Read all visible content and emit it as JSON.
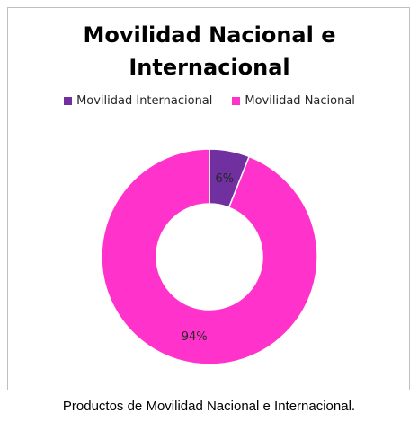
{
  "chart_data": {
    "type": "pie",
    "variant": "donut",
    "title_lines": [
      "Movilidad Nacional e",
      "Internacional"
    ],
    "categories": [
      "Movilidad Internacional",
      "Movilidad Nacional"
    ],
    "values": [
      6,
      94
    ],
    "data_labels": [
      "6%",
      "94%"
    ],
    "colors": [
      "#7030A0",
      "#FF33CC"
    ],
    "legend_position": "top"
  },
  "caption": "Productos de Movilidad Nacional e Internacional."
}
